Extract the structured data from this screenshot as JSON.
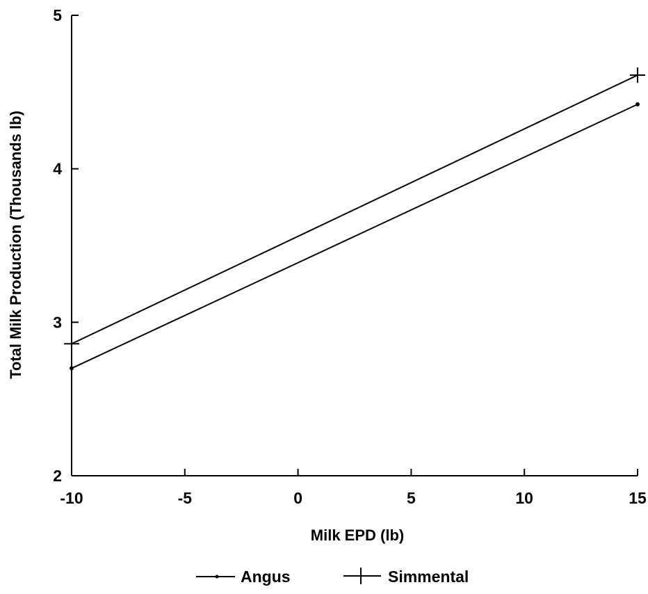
{
  "chart_data": {
    "type": "line",
    "title": "",
    "xlabel": "Milk EPD (lb)",
    "ylabel": "Total Milk Production (Thousands lb)",
    "xlim": [
      -10,
      15
    ],
    "ylim": [
      2,
      5
    ],
    "xticks": [
      -10,
      -5,
      0,
      5,
      10,
      15
    ],
    "yticks": [
      2,
      3,
      4,
      5
    ],
    "xtick_labels": [
      "-10",
      "-5",
      "0",
      "5",
      "10",
      "15"
    ],
    "ytick_labels": [
      "2",
      "3",
      "4",
      "5"
    ],
    "grid": false,
    "legend_position": "bottom-center",
    "series": [
      {
        "name": "Angus",
        "marker": "dot",
        "color": "#000000",
        "x": [
          -10,
          15
        ],
        "y": [
          2.7,
          4.42
        ]
      },
      {
        "name": "Simmental",
        "marker": "plus",
        "color": "#000000",
        "x": [
          -10,
          15
        ],
        "y": [
          2.86,
          4.61
        ]
      }
    ]
  }
}
